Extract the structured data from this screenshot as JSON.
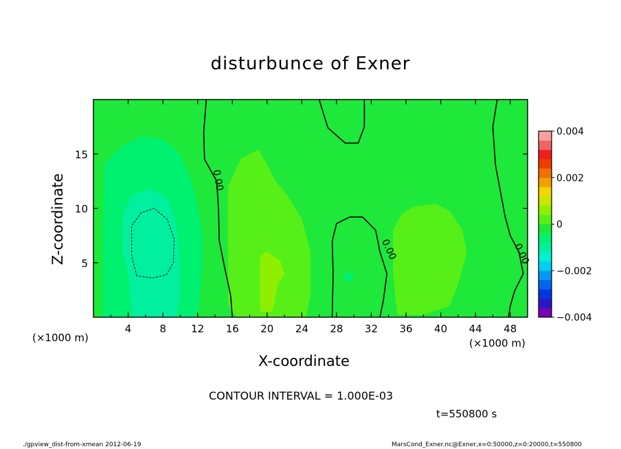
{
  "chart_data": {
    "type": "heatmap",
    "title": "disturbunce of Exner",
    "xlabel": "X-coordinate",
    "ylabel": "Z-coordinate",
    "x_unit_label": "(×1000 m)",
    "xlim": [
      0,
      50
    ],
    "ylim": [
      0,
      20
    ],
    "x_ticks": [
      4,
      8,
      12,
      16,
      20,
      24,
      28,
      32,
      36,
      40,
      44,
      48
    ],
    "y_ticks": [
      5,
      10,
      15
    ],
    "colorbar": {
      "range": [
        -0.004,
        0.004
      ],
      "tick_labels": [
        "0.004",
        "0.002",
        "0",
        "−0.002",
        "−0.004"
      ],
      "tick_values": [
        0.004,
        0.002,
        0,
        -0.002,
        -0.004
      ],
      "colors": [
        "#7a00b4",
        "#2818c8",
        "#0038e0",
        "#0064f0",
        "#0098f0",
        "#00d0f0",
        "#00f0d0",
        "#00f0a0",
        "#00f070",
        "#1ee83a",
        "#56f018",
        "#8ef000",
        "#c8e800",
        "#f0d800",
        "#f0a000",
        "#f07000",
        "#f03c00",
        "#f01e1e",
        "#f06464",
        "#f4a0a0"
      ]
    },
    "contour_interval": "CONTOUR INTERVAL = 1.000E-03",
    "contour_labels": [
      "0.00",
      "0.00",
      "0.00"
    ],
    "values_note": "Field mostly slightly positive (green); negative region near x=3-12, z=2-16; positive bands near x=17-24 and x=34-42"
  },
  "annotations": {
    "time": "t=550800 s",
    "footer_left": "./gpview_dist-from-xmean  2012-06-19",
    "footer_right": "MarsCond_Exner.nc@Exner,x=0:50000,z=0:20000,t=550800"
  }
}
